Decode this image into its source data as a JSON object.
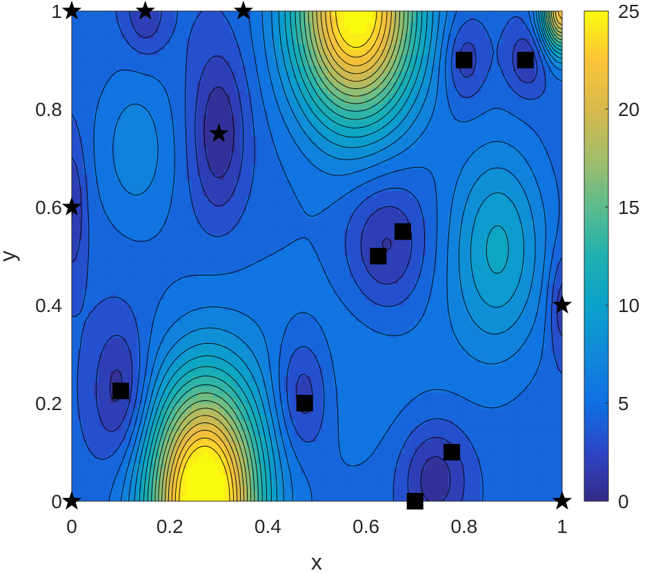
{
  "chart_data": {
    "type": "contour",
    "xlabel": "x",
    "ylabel": "y",
    "xlim": [
      0,
      1
    ],
    "ylim": [
      0,
      1
    ],
    "xticks": [
      "0",
      "0.2",
      "0.4",
      "0.6",
      "0.8",
      "1"
    ],
    "yticks": [
      "0",
      "0.2",
      "0.4",
      "0.6",
      "0.8",
      "1"
    ],
    "colorbar": {
      "range": [
        0,
        25
      ],
      "ticks": [
        "0",
        "5",
        "10",
        "15",
        "20",
        "25"
      ],
      "colormap": "parula"
    },
    "star_markers": [
      {
        "x": 0,
        "y": 1
      },
      {
        "x": 0.15,
        "y": 1
      },
      {
        "x": 0.35,
        "y": 1
      },
      {
        "x": 0.3,
        "y": 0.75
      },
      {
        "x": 0,
        "y": 0.6
      },
      {
        "x": 1,
        "y": 0.4
      },
      {
        "x": 0,
        "y": 0
      },
      {
        "x": 1,
        "y": 0
      }
    ],
    "square_markers": [
      {
        "x": 0.8,
        "y": 0.9
      },
      {
        "x": 0.925,
        "y": 0.9
      },
      {
        "x": 0.675,
        "y": 0.55
      },
      {
        "x": 0.625,
        "y": 0.5
      },
      {
        "x": 0.1,
        "y": 0.225
      },
      {
        "x": 0.475,
        "y": 0.2
      },
      {
        "x": 0.775,
        "y": 0.1
      },
      {
        "x": 0.7,
        "y": 0
      }
    ]
  }
}
